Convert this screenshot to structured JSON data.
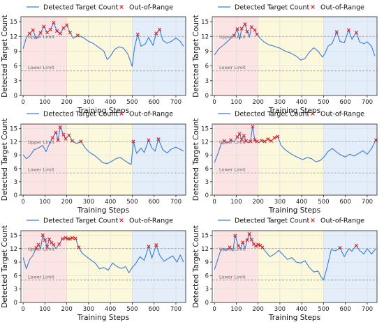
{
  "chart_data": [
    {
      "type": "line",
      "xlabel": "Training Steps",
      "ylabel": "Detected Target Count",
      "xlim": [
        -10,
        745
      ],
      "ylim": [
        0,
        16
      ],
      "xticks": [
        "0",
        "100",
        "200",
        "300",
        "400",
        "500",
        "600",
        "700"
      ],
      "yticks": [
        "0",
        "3",
        "6",
        "9",
        "12",
        "15"
      ],
      "legend": [
        "Detected Target Count",
        "Out-of-Range"
      ],
      "annotations": [
        "Upper Limit",
        "Lower Limit"
      ],
      "upper_limit": 12,
      "lower_limit": 5,
      "phases": [
        {
          "range": [
            0,
            200
          ],
          "color": "#fde4e4"
        },
        {
          "range": [
            200,
            500
          ],
          "color": "#fbf8dc"
        },
        {
          "range": [
            500,
            745
          ],
          "color": "#e3eefa"
        }
      ],
      "grid": true,
      "series": [
        {
          "points": [
            [
              0,
              9.5
            ],
            [
              15,
              11.8
            ],
            [
              30,
              12.6
            ],
            [
              45,
              13.3
            ],
            [
              60,
              11.5
            ],
            [
              80,
              12.7
            ],
            [
              95,
              14.0
            ],
            [
              110,
              12.8
            ],
            [
              125,
              13.4
            ],
            [
              140,
              14.8
            ],
            [
              155,
              13.1
            ],
            [
              170,
              12.6
            ],
            [
              185,
              13.7
            ],
            [
              200,
              14.3
            ],
            [
              215,
              12.8
            ],
            [
              230,
              11.6
            ],
            [
              250,
              12.2
            ],
            [
              275,
              11.8
            ],
            [
              300,
              11.0
            ],
            [
              320,
              10.6
            ],
            [
              340,
              10.0
            ],
            [
              355,
              9.5
            ],
            [
              370,
              9.0
            ],
            [
              385,
              7.3
            ],
            [
              400,
              8.0
            ],
            [
              420,
              9.4
            ],
            [
              440,
              9.9
            ],
            [
              460,
              9.6
            ],
            [
              480,
              8.4
            ],
            [
              500,
              5.9
            ],
            [
              510,
              9.6
            ],
            [
              525,
              12.4
            ],
            [
              540,
              10.0
            ],
            [
              560,
              10.5
            ],
            [
              575,
              11.8
            ],
            [
              595,
              10.2
            ],
            [
              610,
              12.6
            ],
            [
              625,
              13.4
            ],
            [
              640,
              11.2
            ],
            [
              660,
              10.6
            ],
            [
              680,
              11.0
            ],
            [
              700,
              11.7
            ],
            [
              720,
              11.0
            ],
            [
              735,
              10.0
            ]
          ]
        },
        {
          "points": [
            [
              0,
              8.2
            ],
            [
              20,
              9.5
            ],
            [
              40,
              10.2
            ],
            [
              60,
              11.0
            ],
            [
              75,
              11.6
            ],
            [
              90,
              12.2
            ],
            [
              105,
              13.5
            ],
            [
              115,
              11.4
            ],
            [
              125,
              13.6
            ],
            [
              140,
              14.5
            ],
            [
              150,
              13.0
            ],
            [
              160,
              11.8
            ],
            [
              170,
              13.9
            ],
            [
              185,
              13.3
            ],
            [
              195,
              12.4
            ],
            [
              210,
              11.6
            ],
            [
              230,
              10.8
            ],
            [
              250,
              10.3
            ],
            [
              275,
              10.0
            ],
            [
              300,
              9.6
            ],
            [
              325,
              9.0
            ],
            [
              350,
              8.6
            ],
            [
              375,
              8.0
            ],
            [
              395,
              7.2
            ],
            [
              415,
              7.5
            ],
            [
              435,
              8.8
            ],
            [
              455,
              9.7
            ],
            [
              475,
              9.0
            ],
            [
              495,
              7.8
            ],
            [
              505,
              8.4
            ],
            [
              520,
              10.0
            ],
            [
              540,
              10.6
            ],
            [
              560,
              12.9
            ],
            [
              575,
              11.0
            ],
            [
              595,
              10.7
            ],
            [
              615,
              13.3
            ],
            [
              630,
              11.4
            ],
            [
              650,
              12.8
            ],
            [
              665,
              10.9
            ],
            [
              685,
              10.5
            ],
            [
              700,
              10.9
            ],
            [
              720,
              10.0
            ],
            [
              735,
              8.0
            ]
          ]
        },
        {
          "points": [
            [
              0,
              9.1
            ],
            [
              15,
              8.2
            ],
            [
              30,
              8.8
            ],
            [
              50,
              10.2
            ],
            [
              70,
              10.6
            ],
            [
              90,
              11.2
            ],
            [
              105,
              9.8
            ],
            [
              120,
              11.5
            ],
            [
              135,
              12.9
            ],
            [
              150,
              14.1
            ],
            [
              160,
              12.4
            ],
            [
              170,
              15.3
            ],
            [
              185,
              13.6
            ],
            [
              195,
              12.7
            ],
            [
              210,
              13.5
            ],
            [
              225,
              12.2
            ],
            [
              245,
              11.6
            ],
            [
              265,
              12.1
            ],
            [
              285,
              10.6
            ],
            [
              305,
              9.6
            ],
            [
              325,
              9.0
            ],
            [
              345,
              8.2
            ],
            [
              365,
              7.3
            ],
            [
              385,
              7.1
            ],
            [
              405,
              7.6
            ],
            [
              425,
              8.2
            ],
            [
              445,
              8.5
            ],
            [
              465,
              7.8
            ],
            [
              480,
              7.3
            ],
            [
              495,
              6.9
            ],
            [
              505,
              12.1
            ],
            [
              520,
              9.4
            ],
            [
              540,
              10.6
            ],
            [
              555,
              9.6
            ],
            [
              575,
              12.4
            ],
            [
              590,
              10.6
            ],
            [
              605,
              9.9
            ],
            [
              620,
              12.6
            ],
            [
              640,
              10.2
            ],
            [
              660,
              9.5
            ],
            [
              680,
              10.4
            ],
            [
              700,
              10.8
            ],
            [
              720,
              10.3
            ],
            [
              735,
              9.9
            ]
          ]
        },
        {
          "points": [
            [
              0,
              7.3
            ],
            [
              15,
              9.2
            ],
            [
              30,
              11.4
            ],
            [
              45,
              12.2
            ],
            [
              60,
              11.8
            ],
            [
              75,
              12.4
            ],
            [
              90,
              12.0
            ],
            [
              105,
              13.1
            ],
            [
              115,
              13.8
            ],
            [
              125,
              12.5
            ],
            [
              135,
              13.4
            ],
            [
              145,
              12.2
            ],
            [
              155,
              11.8
            ],
            [
              165,
              12.1
            ],
            [
              175,
              15.4
            ],
            [
              185,
              12.4
            ],
            [
              195,
              12.1
            ],
            [
              205,
              11.8
            ],
            [
              215,
              12.3
            ],
            [
              230,
              12.1
            ],
            [
              245,
              12.6
            ],
            [
              260,
              12.2
            ],
            [
              275,
              12.9
            ],
            [
              290,
              13.2
            ],
            [
              305,
              11.2
            ],
            [
              325,
              10.2
            ],
            [
              345,
              9.5
            ],
            [
              365,
              8.9
            ],
            [
              385,
              8.4
            ],
            [
              405,
              8.0
            ],
            [
              425,
              8.5
            ],
            [
              445,
              8.2
            ],
            [
              465,
              7.5
            ],
            [
              485,
              7.8
            ],
            [
              505,
              8.8
            ],
            [
              520,
              9.8
            ],
            [
              540,
              10.5
            ],
            [
              560,
              9.7
            ],
            [
              580,
              9.0
            ],
            [
              600,
              8.6
            ],
            [
              620,
              9.2
            ],
            [
              640,
              8.8
            ],
            [
              660,
              9.4
            ],
            [
              680,
              10.0
            ],
            [
              700,
              9.2
            ],
            [
              720,
              10.5
            ],
            [
              740,
              12.4
            ]
          ]
        },
        {
          "points": [
            [
              0,
              10.0
            ],
            [
              15,
              7.5
            ],
            [
              30,
              9.6
            ],
            [
              45,
              10.5
            ],
            [
              60,
              12.2
            ],
            [
              70,
              12.9
            ],
            [
              80,
              12.0
            ],
            [
              90,
              15.0
            ],
            [
              100,
              13.9
            ],
            [
              110,
              12.4
            ],
            [
              120,
              14.1
            ],
            [
              130,
              13.3
            ],
            [
              140,
              12.9
            ],
            [
              150,
              12.0
            ],
            [
              165,
              13.0
            ],
            [
              180,
              14.2
            ],
            [
              195,
              14.4
            ],
            [
              205,
              14.2
            ],
            [
              215,
              14.2
            ],
            [
              225,
              14.4
            ],
            [
              240,
              14.3
            ],
            [
              255,
              12.3
            ],
            [
              270,
              11.0
            ],
            [
              290,
              10.2
            ],
            [
              310,
              9.5
            ],
            [
              330,
              8.8
            ],
            [
              350,
              7.5
            ],
            [
              370,
              7.8
            ],
            [
              390,
              7.2
            ],
            [
              410,
              8.8
            ],
            [
              430,
              8.0
            ],
            [
              450,
              7.6
            ],
            [
              470,
              8.0
            ],
            [
              485,
              6.6
            ],
            [
              500,
              7.8
            ],
            [
              515,
              8.6
            ],
            [
              535,
              10.2
            ],
            [
              555,
              9.4
            ],
            [
              575,
              12.5
            ],
            [
              590,
              9.9
            ],
            [
              610,
              12.8
            ],
            [
              625,
              10.6
            ],
            [
              645,
              9.2
            ],
            [
              665,
              9.8
            ],
            [
              685,
              10.4
            ],
            [
              705,
              9.0
            ],
            [
              720,
              10.6
            ],
            [
              735,
              9.0
            ]
          ]
        },
        {
          "points": [
            [
              0,
              7.3
            ],
            [
              15,
              9.5
            ],
            [
              30,
              11.8
            ],
            [
              40,
              12.0
            ],
            [
              55,
              11.6
            ],
            [
              70,
              12.3
            ],
            [
              85,
              11.5
            ],
            [
              95,
              14.9
            ],
            [
              110,
              12.6
            ],
            [
              120,
              12.0
            ],
            [
              130,
              13.4
            ],
            [
              140,
              12.0
            ],
            [
              150,
              13.9
            ],
            [
              160,
              15.3
            ],
            [
              170,
              14.0
            ],
            [
              180,
              13.0
            ],
            [
              190,
              12.6
            ],
            [
              200,
              12.9
            ],
            [
              210,
              12.7
            ],
            [
              220,
              12.3
            ],
            [
              235,
              11.3
            ],
            [
              255,
              10.2
            ],
            [
              275,
              10.8
            ],
            [
              295,
              11.6
            ],
            [
              315,
              10.6
            ],
            [
              335,
              9.6
            ],
            [
              355,
              10.0
            ],
            [
              375,
              9.0
            ],
            [
              395,
              8.8
            ],
            [
              415,
              9.3
            ],
            [
              435,
              7.8
            ],
            [
              455,
              6.8
            ],
            [
              475,
              7.0
            ],
            [
              490,
              5.6
            ],
            [
              500,
              5.0
            ],
            [
              515,
              7.6
            ],
            [
              535,
              11.8
            ],
            [
              555,
              11.5
            ],
            [
              575,
              12.2
            ],
            [
              595,
              10.2
            ],
            [
              615,
              12.0
            ],
            [
              630,
              11.4
            ],
            [
              650,
              12.7
            ],
            [
              665,
              11.6
            ],
            [
              685,
              10.8
            ],
            [
              700,
              12.0
            ],
            [
              720,
              10.8
            ],
            [
              740,
              12.0
            ]
          ]
        }
      ]
    }
  ]
}
